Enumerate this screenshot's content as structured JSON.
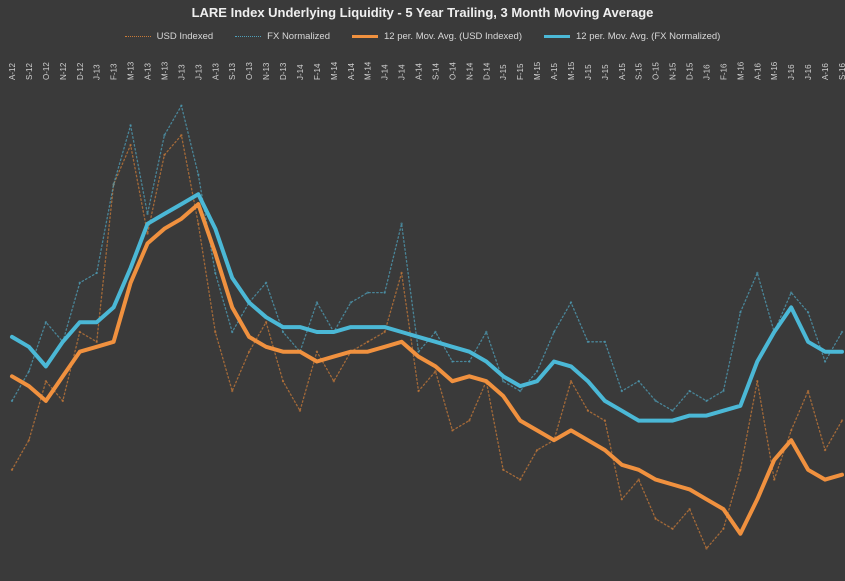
{
  "chart_data": {
    "type": "line",
    "title": "LARE Index Underlying Liquidity - 5 Year Trailing, 3 Month Moving Average",
    "xlabel": "",
    "ylabel": "",
    "grid": false,
    "legend_position": "top",
    "categories": [
      "A-12",
      "S-12",
      "O-12",
      "N-12",
      "D-12",
      "J-13",
      "F-13",
      "M-13",
      "A-13",
      "M-13",
      "J-13",
      "J-13",
      "A-13",
      "S-13",
      "O-13",
      "N-13",
      "D-13",
      "J-14",
      "F-14",
      "M-14",
      "A-14",
      "M-14",
      "J-14",
      "J-14",
      "A-14",
      "S-14",
      "O-14",
      "N-14",
      "D-14",
      "J-15",
      "F-15",
      "M-15",
      "A-15",
      "M-15",
      "J-15",
      "J-15",
      "A-15",
      "S-15",
      "O-15",
      "N-15",
      "D-15",
      "J-16",
      "F-16",
      "M-16",
      "A-16",
      "M-16",
      "J-16",
      "J-16",
      "A-16",
      "S-16"
    ],
    "ylim": [
      0,
      100
    ],
    "series": [
      {
        "name": "USD Indexed",
        "style": "dotted",
        "color": "#c77a38",
        "values": [
          22,
          28,
          40,
          36,
          50,
          48,
          80,
          88,
          70,
          86,
          90,
          72,
          50,
          38,
          46,
          52,
          40,
          34,
          46,
          40,
          46,
          48,
          50,
          62,
          38,
          42,
          30,
          32,
          40,
          22,
          20,
          26,
          28,
          40,
          34,
          32,
          16,
          20,
          12,
          10,
          14,
          6,
          10,
          22,
          40,
          20,
          30,
          38,
          26,
          32
        ]
      },
      {
        "name": "FX Normalized",
        "style": "dotted",
        "color": "#4f9fb8",
        "values": [
          36,
          42,
          52,
          48,
          60,
          62,
          80,
          92,
          74,
          90,
          96,
          82,
          62,
          50,
          56,
          60,
          50,
          46,
          56,
          50,
          56,
          58,
          58,
          72,
          46,
          50,
          44,
          44,
          50,
          40,
          38,
          42,
          50,
          56,
          48,
          48,
          38,
          40,
          36,
          34,
          38,
          36,
          38,
          54,
          62,
          50,
          58,
          54,
          44,
          50
        ]
      },
      {
        "name": "12 per. Mov. Avg. (USD Indexed)",
        "style": "solid",
        "color": "#f0913f",
        "values": [
          41,
          39,
          36,
          41,
          46,
          47,
          48,
          60,
          68,
          71,
          73,
          76,
          66,
          55,
          49,
          47,
          46,
          46,
          44,
          45,
          46,
          46,
          47,
          48,
          45,
          43,
          40,
          41,
          40,
          37,
          32,
          30,
          28,
          30,
          28,
          26,
          23,
          22,
          20,
          19,
          18,
          16,
          14,
          9,
          16,
          24,
          28,
          22,
          20,
          21
        ]
      },
      {
        "name": "12 per. Mov. Avg. (FX Normalized)",
        "style": "solid",
        "color": "#4bb8d6",
        "values": [
          49,
          47,
          43,
          48,
          52,
          52,
          55,
          63,
          72,
          74,
          76,
          78,
          71,
          61,
          56,
          53,
          51,
          51,
          50,
          50,
          51,
          51,
          51,
          50,
          49,
          48,
          47,
          46,
          44,
          41,
          39,
          40,
          44,
          43,
          40,
          36,
          34,
          32,
          32,
          32,
          33,
          33,
          34,
          35,
          44,
          50,
          55,
          48,
          46,
          46
        ]
      }
    ]
  }
}
